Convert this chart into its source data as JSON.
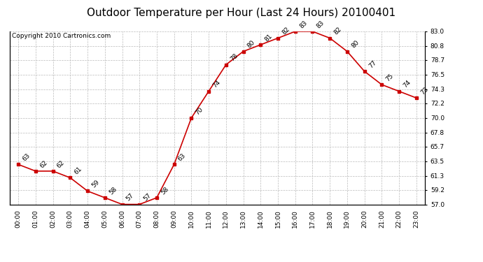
{
  "title": "Outdoor Temperature per Hour (Last 24 Hours) 20100401",
  "copyright": "Copyright 2010 Cartronics.com",
  "hours": [
    "00:00",
    "01:00",
    "02:00",
    "03:00",
    "04:00",
    "05:00",
    "06:00",
    "07:00",
    "08:00",
    "09:00",
    "10:00",
    "11:00",
    "12:00",
    "13:00",
    "14:00",
    "15:00",
    "16:00",
    "17:00",
    "18:00",
    "19:00",
    "20:00",
    "21:00",
    "22:00",
    "23:00"
  ],
  "temps": [
    63,
    62,
    62,
    61,
    59,
    58,
    57,
    57,
    58,
    63,
    70,
    74,
    78,
    80,
    81,
    82,
    83,
    83,
    82,
    80,
    77,
    75,
    74,
    73
  ],
  "ylim_min": 57.0,
  "ylim_max": 83.0,
  "yticks": [
    57.0,
    59.2,
    61.3,
    63.5,
    65.7,
    67.8,
    70.0,
    72.2,
    74.3,
    76.5,
    78.7,
    80.8,
    83.0
  ],
  "line_color": "#cc0000",
  "marker_color": "#cc0000",
  "bg_color": "#ffffff",
  "grid_color": "#bbbbbb",
  "title_fontsize": 11,
  "label_fontsize": 6.5,
  "tick_fontsize": 6.5,
  "copyright_fontsize": 6.5
}
